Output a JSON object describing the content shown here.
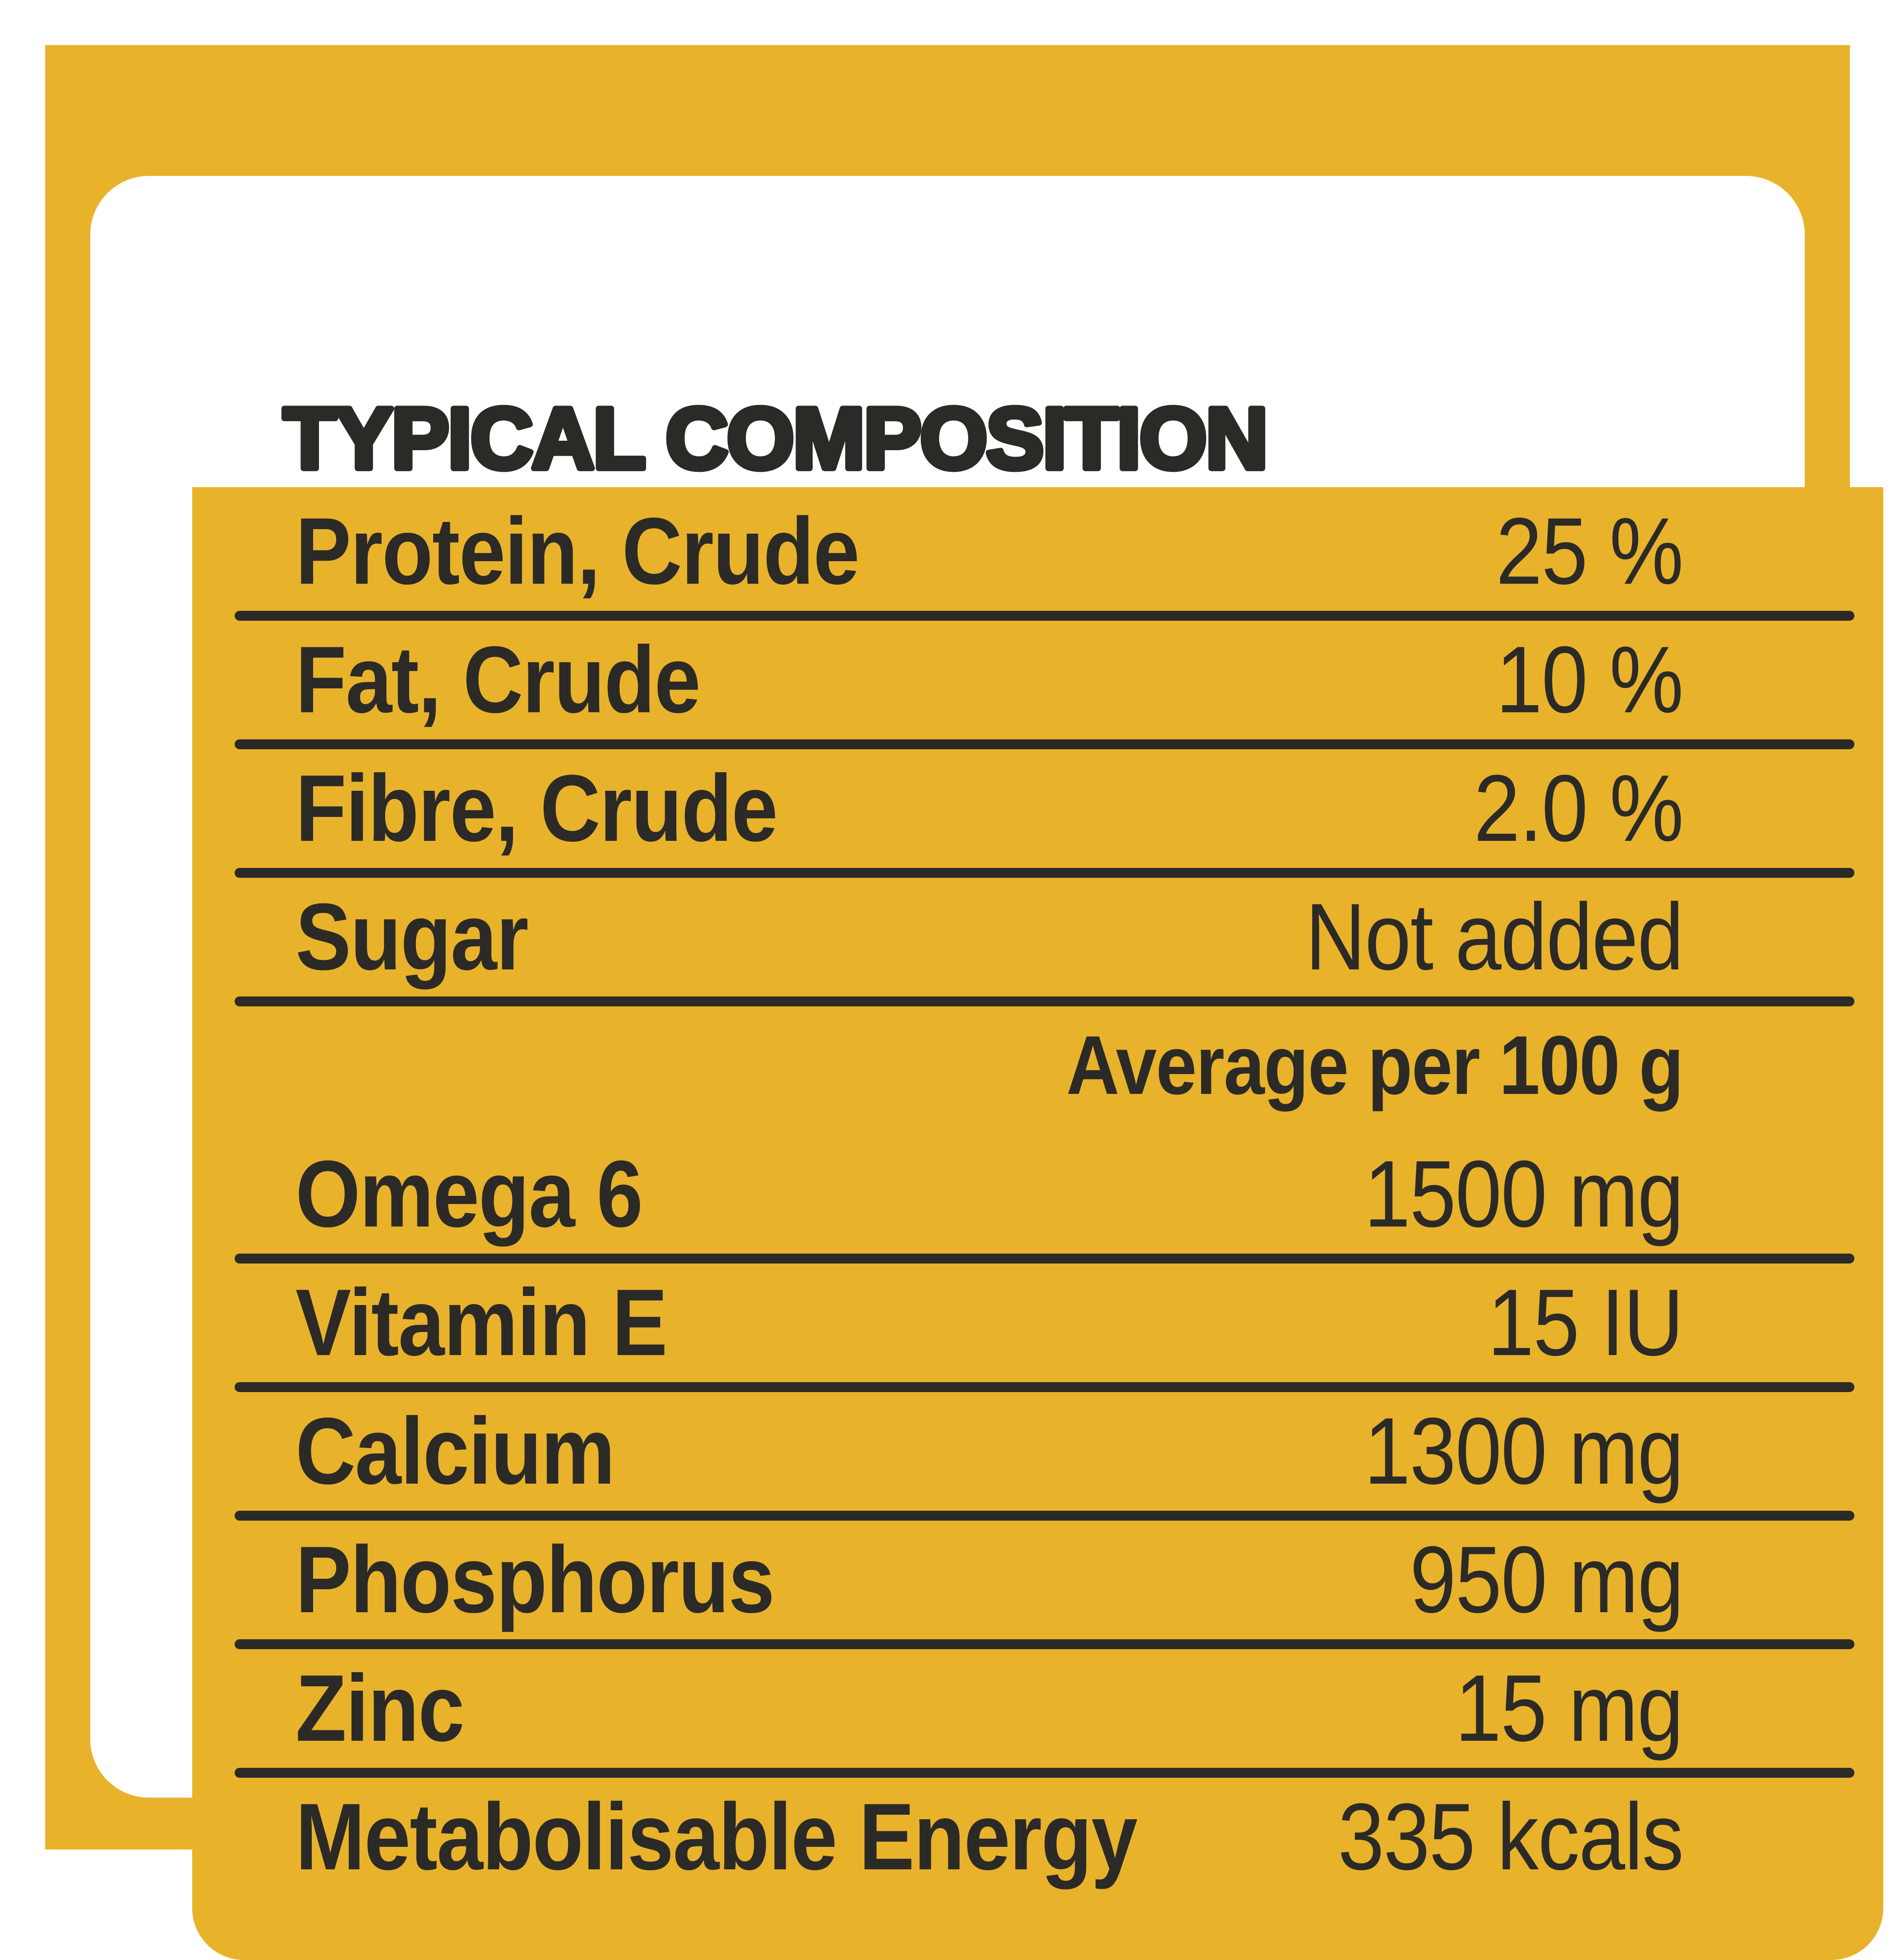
{
  "panel": {
    "title": "TYPICAL COMPOSITION"
  },
  "colors": {
    "yellow": "#E8B22B",
    "ink": "#2B2A27",
    "panel_background": "#FFFFFF",
    "page_background": "#FFFFFF"
  },
  "table": {
    "group_header": "Average per 100 g",
    "rows": [
      {
        "label": "Protein, Crude",
        "value": "25 %"
      },
      {
        "label": "Fat, Crude",
        "value": "10 %"
      },
      {
        "label": "Fibre, Crude",
        "value": "2.0 %"
      },
      {
        "label": "Sugar",
        "value": "Not added"
      },
      {
        "label": "Omega 6",
        "value": "1500 mg"
      },
      {
        "label": "Vitamin E",
        "value": "15 IU"
      },
      {
        "label": "Calcium",
        "value": "1300 mg"
      },
      {
        "label": "Phosphorus",
        "value": "950 mg"
      },
      {
        "label": "Zinc",
        "value": "15 mg"
      },
      {
        "label": "Metabolisable Energy",
        "value": "335 kcals"
      }
    ]
  }
}
